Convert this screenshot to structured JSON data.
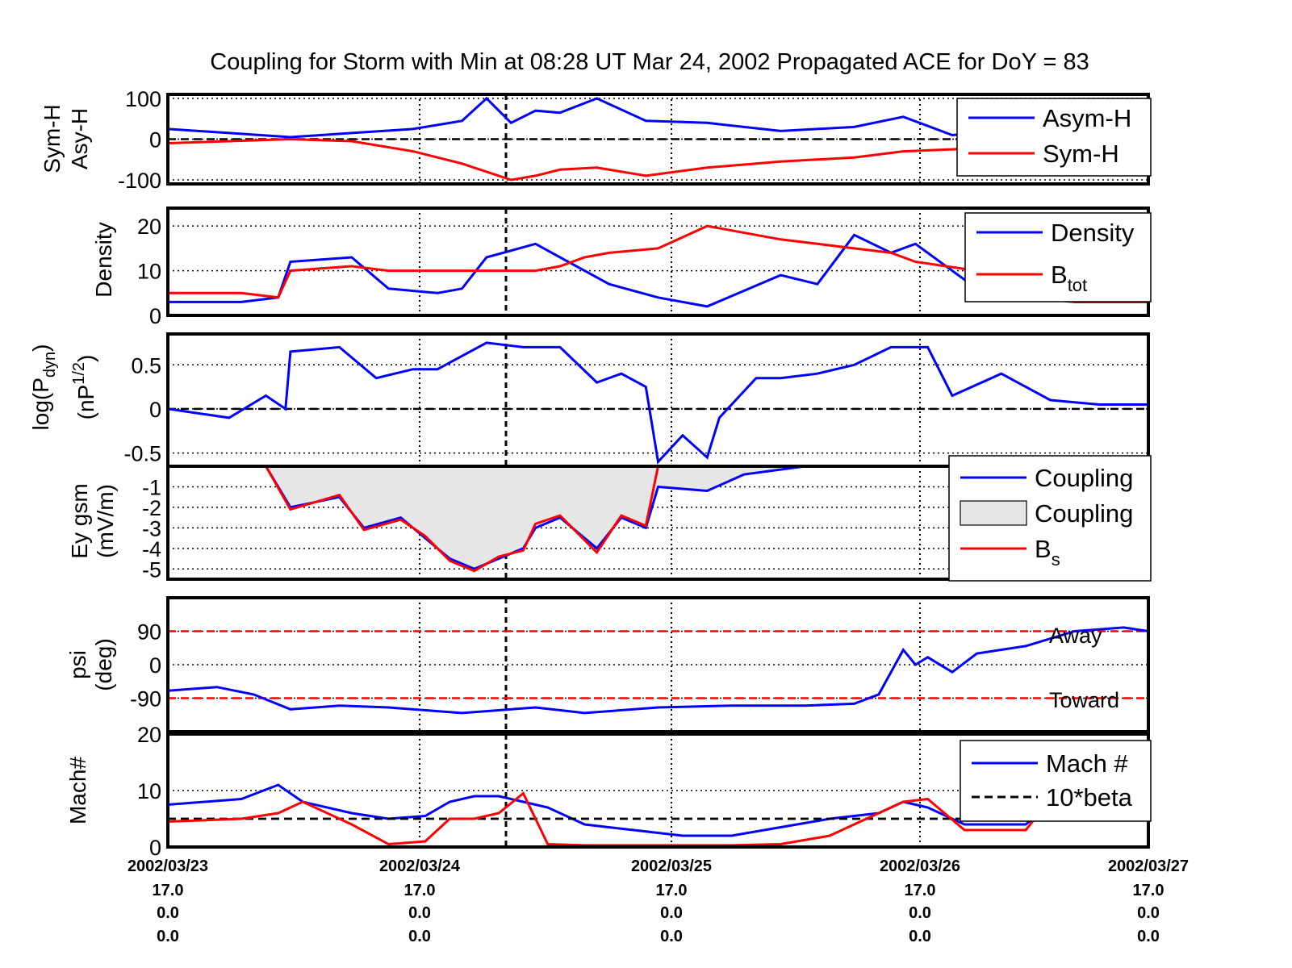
{
  "title": "Coupling for Storm with Min at 08:28 UT Mar 24, 2002  Propagated ACE for DoY = 83",
  "x_axis": {
    "dates": [
      "2002/03/23",
      "2002/03/24",
      "2002/03/25",
      "2002/03/26",
      "2002/03/27"
    ],
    "row2": [
      "17.0",
      "17.0",
      "17.0",
      "17.0",
      "17.0"
    ],
    "row3": [
      "0.0",
      "0.0",
      "0.0",
      "0.0",
      "0.0"
    ],
    "row4": [
      "0.0",
      "0.0",
      "0.0",
      "0.0",
      "0.0"
    ]
  },
  "colors": {
    "blue": "#0000ff",
    "red": "#ff0000",
    "navy": "#000080",
    "fill": "#e6e6e6",
    "black": "#000000"
  },
  "chart_data": [
    {
      "type": "line",
      "ylabel": [
        "Sym-H",
        "Asy-H"
      ],
      "ylim": [
        -110,
        110
      ],
      "yticks": [
        "100",
        "0",
        "-100"
      ],
      "ytick_values": [
        100,
        0,
        -100
      ],
      "reference_lines": [
        0
      ],
      "x": [
        0,
        0.25,
        0.5,
        0.75,
        1.0,
        1.2,
        1.3,
        1.4,
        1.5,
        1.6,
        1.75,
        1.95,
        2.2,
        2.5,
        2.8,
        3.0,
        3.2,
        3.4,
        3.6,
        3.8,
        4.0
      ],
      "legend_position": "top-right",
      "series": [
        {
          "name": "Asym-H",
          "color": "#0000ff",
          "values": [
            25,
            15,
            5,
            15,
            25,
            45,
            100,
            40,
            70,
            65,
            100,
            45,
            40,
            20,
            30,
            55,
            10,
            20,
            10,
            25,
            10
          ]
        },
        {
          "name": "Sym-H",
          "color": "#ff0000",
          "values": [
            -10,
            -5,
            0,
            -5,
            -30,
            -60,
            -80,
            -100,
            -90,
            -75,
            -70,
            -90,
            -70,
            -55,
            -45,
            -30,
            -25,
            -20,
            -25,
            -25,
            -25
          ]
        }
      ]
    },
    {
      "type": "line",
      "ylabel": [
        "Density"
      ],
      "ylim": [
        0,
        24
      ],
      "yticks": [
        "20",
        "10",
        "0"
      ],
      "ytick_values": [
        20,
        10,
        0
      ],
      "x": [
        0,
        0.3,
        0.45,
        0.5,
        0.75,
        0.9,
        1.1,
        1.2,
        1.3,
        1.5,
        1.6,
        1.7,
        1.8,
        2.0,
        2.2,
        2.5,
        2.65,
        2.8,
        2.95,
        3.05,
        3.3,
        3.5,
        3.7,
        4.0
      ],
      "legend_position": "top-right",
      "series": [
        {
          "name": "Density",
          "color": "#0000ff",
          "values": [
            3,
            3,
            4,
            12,
            13,
            6,
            5,
            6,
            13,
            16,
            13,
            10,
            7,
            4,
            2,
            9,
            7,
            18,
            14,
            16,
            6,
            4,
            3,
            3
          ]
        },
        {
          "name": "Btot",
          "color": "#ff0000",
          "values": [
            5,
            5,
            4,
            10,
            11,
            10,
            10,
            10,
            10,
            10,
            11,
            13,
            14,
            15,
            20,
            17,
            16,
            15,
            14,
            12,
            10,
            5,
            3,
            3
          ]
        }
      ]
    },
    {
      "type": "line",
      "ylabel": [
        "log(P",
        "dyn",
        ")",
        "(nP",
        "1/2",
        ")"
      ],
      "ylim": [
        -0.65,
        0.85
      ],
      "yticks": [
        "0.5",
        "0",
        "-0.5"
      ],
      "ytick_values": [
        0.5,
        0,
        -0.5
      ],
      "reference_lines": [
        0
      ],
      "x": [
        0,
        0.25,
        0.4,
        0.48,
        0.5,
        0.7,
        0.85,
        1.0,
        1.1,
        1.3,
        1.45,
        1.6,
        1.75,
        1.85,
        1.95,
        2.0,
        2.1,
        2.2,
        2.25,
        2.4,
        2.5,
        2.65,
        2.8,
        2.95,
        3.1,
        3.2,
        3.4,
        3.6,
        3.8,
        4.0
      ],
      "series": [
        {
          "name": "",
          "color": "#0000ff",
          "values": [
            0,
            -0.1,
            0.15,
            0.0,
            0.65,
            0.7,
            0.35,
            0.45,
            0.45,
            0.75,
            0.7,
            0.7,
            0.3,
            0.4,
            0.25,
            -0.6,
            -0.3,
            -0.55,
            -0.1,
            0.35,
            0.35,
            0.4,
            0.5,
            0.7,
            0.7,
            0.15,
            0.4,
            0.1,
            0.05,
            0.05
          ]
        }
      ]
    },
    {
      "type": "area",
      "ylabel": [
        "Ey gsm",
        "(mV/m)"
      ],
      "ylim": [
        -5.5,
        0
      ],
      "yticks": [
        "-1",
        "-2",
        "-3",
        "-4",
        "-5"
      ],
      "ytick_values": [
        -1,
        -2,
        -3,
        -4,
        -5
      ],
      "x": [
        0,
        0.4,
        0.5,
        0.7,
        0.8,
        0.95,
        1.05,
        1.15,
        1.25,
        1.35,
        1.45,
        1.5,
        1.6,
        1.75,
        1.85,
        1.95,
        2.0,
        2.2,
        2.35,
        2.6,
        2.9,
        3.0,
        3.3,
        3.4,
        4.0
      ],
      "legend_position": "top-right",
      "series": [
        {
          "name": "Coupling",
          "color": "#0000ff",
          "values": [
            0,
            0,
            -2,
            -1.5,
            -3,
            -2.5,
            -3.5,
            -4.5,
            -5,
            -4.5,
            -4,
            -3,
            -2.5,
            -4,
            -2.5,
            -3,
            -1,
            -1.2,
            -0.4,
            0,
            0,
            0,
            0,
            0,
            0
          ]
        },
        {
          "name": "Coupling",
          "color": "#e6e6e6",
          "values": [
            0,
            0,
            -2,
            -1.5,
            -3,
            -2.5,
            -3.5,
            -4.5,
            -5,
            -4.5,
            -4,
            -3,
            -2.5,
            -4,
            -2.5,
            -3,
            -1,
            -1.2,
            -0.4,
            0,
            0,
            0,
            0,
            0,
            0
          ]
        },
        {
          "name": "Bs",
          "color": "#ff0000",
          "values": [
            0,
            0,
            -2.1,
            -1.4,
            -3.1,
            -2.6,
            -3.4,
            -4.6,
            -5.1,
            -4.4,
            -4.1,
            -2.8,
            -2.4,
            -4.2,
            -2.4,
            -2.9,
            0,
            0,
            0,
            0,
            0,
            0,
            0,
            0,
            0
          ]
        }
      ]
    },
    {
      "type": "line",
      "ylabel": [
        "psi",
        "(deg)"
      ],
      "ylim": [
        -180,
        180
      ],
      "yticks": [
        "90",
        "0",
        "-90"
      ],
      "ytick_values": [
        90,
        0,
        -90
      ],
      "reference_lines": [
        90,
        -90
      ],
      "annotations": [
        "Away",
        "Toward"
      ],
      "x": [
        0,
        0.2,
        0.35,
        0.5,
        0.7,
        0.9,
        1.1,
        1.2,
        1.3,
        1.5,
        1.7,
        2.0,
        2.3,
        2.6,
        2.8,
        2.9,
        3.0,
        3.05,
        3.1,
        3.2,
        3.3,
        3.5,
        3.7,
        3.9,
        4.0
      ],
      "series": [
        {
          "name": "",
          "color": "#0000ff",
          "values": [
            -70,
            -60,
            -80,
            -120,
            -110,
            -115,
            -125,
            -130,
            -125,
            -115,
            -130,
            -115,
            -110,
            -110,
            -105,
            -80,
            40,
            0,
            20,
            -20,
            30,
            50,
            90,
            100,
            90
          ]
        }
      ]
    },
    {
      "type": "line",
      "ylabel": [
        "Mach#"
      ],
      "ylim": [
        0,
        20
      ],
      "yticks": [
        "20",
        "10",
        "0"
      ],
      "ytick_values": [
        20,
        10,
        0
      ],
      "reference_lines": [
        5
      ],
      "x": [
        0,
        0.3,
        0.45,
        0.55,
        0.75,
        0.9,
        1.05,
        1.15,
        1.25,
        1.35,
        1.45,
        1.55,
        1.7,
        1.9,
        2.1,
        2.3,
        2.5,
        2.7,
        2.9,
        3.0,
        3.1,
        3.25,
        3.5,
        3.7,
        4.0
      ],
      "legend_position": "top-right",
      "series": [
        {
          "name": "Mach #",
          "color": "#0000ff",
          "values": [
            7.5,
            8.5,
            11,
            8,
            6,
            5,
            5.5,
            8,
            9,
            9,
            8,
            7,
            4,
            3,
            2,
            2,
            3.5,
            5,
            6,
            8,
            7,
            4,
            4,
            11,
            11
          ]
        },
        {
          "name": "10*beta",
          "color": "#000000",
          "values": [
            5,
            5,
            5,
            5,
            5,
            5,
            5,
            5,
            5,
            5,
            5,
            5,
            5,
            5,
            5,
            5,
            5,
            5,
            5,
            5,
            5,
            5,
            5,
            5,
            5
          ]
        },
        {
          "name": "",
          "color": "#ff0000",
          "values": [
            4.5,
            5,
            6,
            8,
            4,
            0.5,
            1,
            5,
            5,
            6,
            9.5,
            0.5,
            0.3,
            0.3,
            0.3,
            0.3,
            0.5,
            2,
            6,
            8,
            8.5,
            3,
            3,
            14,
            13
          ]
        }
      ]
    }
  ]
}
